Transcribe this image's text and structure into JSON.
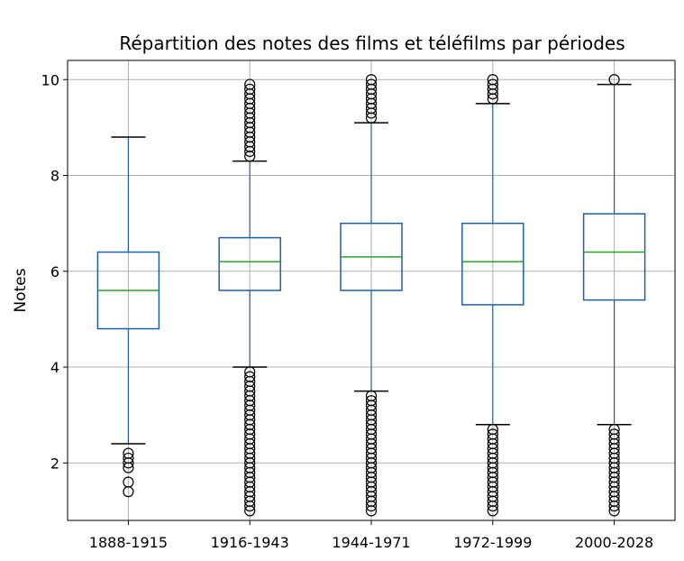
{
  "chart_data": {
    "type": "boxplot",
    "title": "Répartition des notes des films et téléfilms par périodes",
    "ylabel": "Notes",
    "xlabel": "",
    "ylim": [
      0.8,
      10.4
    ],
    "yticks": [
      2,
      4,
      6,
      8,
      10
    ],
    "grid": true,
    "categories": [
      "1888-1915",
      "1916-1943",
      "1944-1971",
      "1972-1999",
      "2000-2028"
    ],
    "boxes": [
      {
        "whisker_low": 2.4,
        "q1": 4.8,
        "median": 5.6,
        "q3": 6.4,
        "whisker_high": 8.8,
        "outliers": [
          1.4,
          1.6,
          1.9,
          2.0,
          2.1,
          2.2
        ]
      },
      {
        "whisker_low": 4.0,
        "q1": 5.6,
        "median": 6.2,
        "q3": 6.7,
        "whisker_high": 8.3,
        "outliers_low_range": [
          1.0,
          3.9
        ],
        "outliers_high_range": [
          8.4,
          9.9
        ]
      },
      {
        "whisker_low": 3.5,
        "q1": 5.6,
        "median": 6.3,
        "q3": 7.0,
        "whisker_high": 9.1,
        "outliers_low_range": [
          1.0,
          3.4
        ],
        "outliers_high_range": [
          9.2,
          10.0
        ]
      },
      {
        "whisker_low": 2.8,
        "q1": 5.3,
        "median": 6.2,
        "q3": 7.0,
        "whisker_high": 9.5,
        "outliers_low_range": [
          1.0,
          2.7
        ],
        "outliers_high_range": [
          9.6,
          10.0
        ]
      },
      {
        "whisker_low": 2.8,
        "q1": 5.4,
        "median": 6.4,
        "q3": 7.2,
        "whisker_high": 9.9,
        "outliers_low_range": [
          1.0,
          2.7
        ],
        "outliers_high_range": [
          10.0,
          10.0
        ]
      }
    ]
  }
}
